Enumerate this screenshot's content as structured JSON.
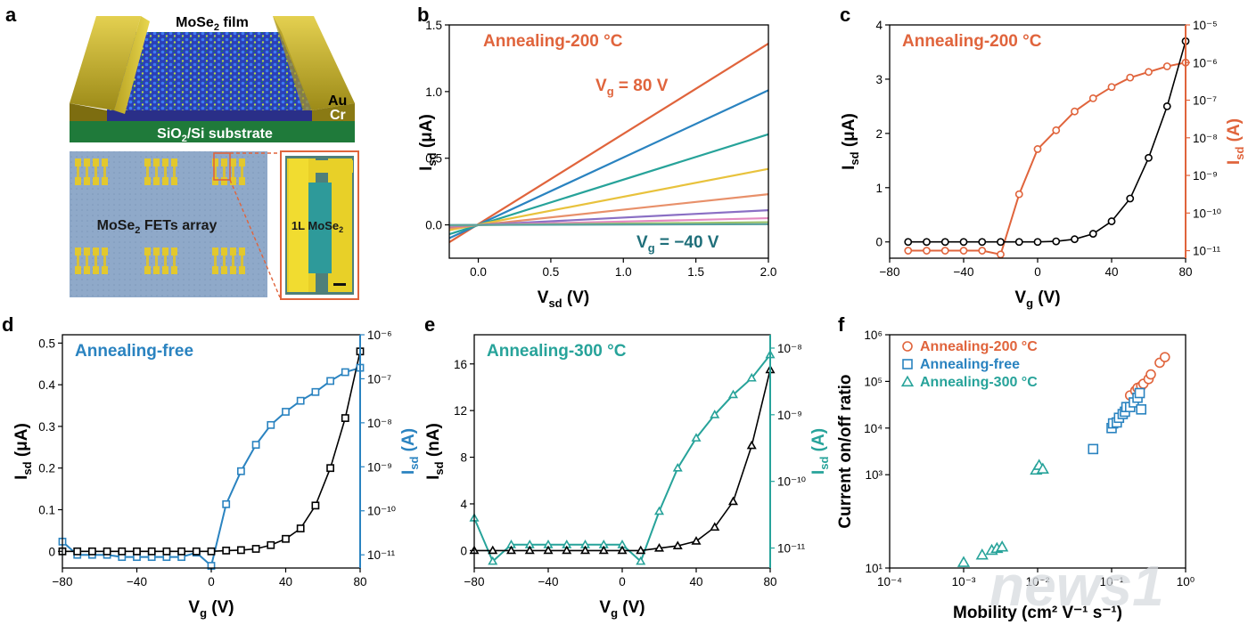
{
  "panel_labels": {
    "a": "a",
    "b": "b",
    "c": "c",
    "d": "d",
    "e": "e",
    "f": "f"
  },
  "illustration": {
    "film_label": "MoSe",
    "film_label_sub": "2",
    "film_label_rest": " film",
    "electrode_top": "Au",
    "electrode_bottom": "Cr",
    "substrate_label": "SiO",
    "substrate_sub": "2",
    "substrate_rest": "/Si substrate",
    "array_label": "MoSe",
    "array_label_sub": "2",
    "array_label_rest": " FETs array",
    "zoom_label": "1L MoSe",
    "zoom_label_sub": "2"
  },
  "colors": {
    "orange": "#e0643c",
    "blue": "#2a83c0",
    "teal": "#27a39a",
    "dark": "#000000",
    "gold": "#c9b52a",
    "green": "#1f7a3a"
  },
  "watermark": {
    "text": "news1"
  },
  "chart_data": [
    {
      "id": "b",
      "type": "line",
      "annotation": "Annealing-200 °C",
      "label_top": {
        "main": "V",
        "sub": "g",
        "rest": " = 80 V"
      },
      "label_bottom": {
        "main": "V",
        "sub": "g",
        "rest": " = −40 V"
      },
      "xlabel": {
        "main": "V",
        "sub": "sd",
        "rest": "  (V)"
      },
      "ylabel": {
        "main": "I",
        "sub": "sd",
        "rest": " (μA)"
      },
      "xlim": [
        -0.2,
        2.0
      ],
      "ylim": [
        -0.25,
        1.5
      ],
      "xticks": [
        "0.0",
        "0.5",
        "1.0",
        "1.5",
        "2.0"
      ],
      "yticks": [
        "0.0",
        "0.5",
        "1.0",
        "1.5"
      ],
      "x": [
        -0.2,
        2.0
      ],
      "series": [
        {
          "color": "#e0643c",
          "values": [
            -0.13,
            1.36
          ]
        },
        {
          "color": "#2a83c0",
          "values": [
            -0.1,
            1.01
          ]
        },
        {
          "color": "#27a39a",
          "values": [
            -0.07,
            0.68
          ]
        },
        {
          "color": "#e8c23c",
          "values": [
            -0.04,
            0.42
          ]
        },
        {
          "color": "#e8906a",
          "values": [
            -0.025,
            0.23
          ]
        },
        {
          "color": "#8a6fc4",
          "values": [
            -0.012,
            0.11
          ]
        },
        {
          "color": "#e48ac0",
          "values": [
            -0.006,
            0.05
          ]
        },
        {
          "color": "#9bc36a",
          "values": [
            -0.003,
            0.02
          ]
        },
        {
          "color": "#5aa0a0",
          "values": [
            -0.001,
            0.005
          ]
        }
      ]
    },
    {
      "id": "c",
      "type": "line",
      "annotation": "Annealing-200 °C",
      "xlabel": {
        "main": "V",
        "sub": "g",
        "rest": " (V)"
      },
      "ylabel": {
        "main": "I",
        "sub": "sd",
        "rest": " (μA)"
      },
      "y2label": {
        "main": "I",
        "sub": "sd",
        "rest": " (A)"
      },
      "xlim": [
        -80,
        80
      ],
      "ylim": [
        -0.3,
        4
      ],
      "y2log": [
        -11.2,
        -5
      ],
      "xticks": [
        "−80",
        "−40",
        "0",
        "40",
        "80"
      ],
      "yticks": [
        "0",
        "1",
        "2",
        "3",
        "4"
      ],
      "y2ticks": [
        "10⁻¹¹",
        "10⁻¹⁰",
        "10⁻⁹",
        "10⁻⁸",
        "10⁻⁷",
        "10⁻⁶",
        "10⁻⁵"
      ],
      "x": [
        -70,
        -60,
        -50,
        -40,
        -30,
        -20,
        -10,
        0,
        10,
        20,
        30,
        40,
        50,
        60,
        70,
        80
      ],
      "linear": [
        0,
        0,
        0,
        0,
        0,
        0,
        0,
        0,
        0.01,
        0.05,
        0.15,
        0.38,
        0.8,
        1.55,
        2.5,
        3.7
      ],
      "log": [
        -11,
        -11,
        -11,
        -11,
        -11,
        -11.1,
        -9.5,
        -8.3,
        -7.8,
        -7.3,
        -6.95,
        -6.65,
        -6.4,
        -6.25,
        -6.1,
        -6.0
      ],
      "linear_color": "#000000",
      "log_color": "#e0643c",
      "marker": "circle"
    },
    {
      "id": "d",
      "type": "line",
      "annotation": "Annealing-free",
      "xlabel": {
        "main": "V",
        "sub": "g",
        "rest": " (V)"
      },
      "ylabel": {
        "main": "I",
        "sub": "sd",
        "rest": " (μA)"
      },
      "y2label": {
        "main": "I",
        "sub": "sd",
        "rest": " (A)"
      },
      "xlim": [
        -80,
        80
      ],
      "ylim": [
        -0.04,
        0.52
      ],
      "y2log": [
        -11.3,
        -6
      ],
      "xticks": [
        "−80",
        "−40",
        "0",
        "40",
        "80"
      ],
      "yticks": [
        "0",
        "0.1",
        "0.2",
        "0.3",
        "0.4",
        "0.5"
      ],
      "y2ticks": [
        "10⁻¹¹",
        "10⁻¹⁰",
        "10⁻⁹",
        "10⁻⁸",
        "10⁻⁷",
        "10⁻⁶"
      ],
      "x": [
        -80,
        -72,
        -64,
        -56,
        -48,
        -40,
        -32,
        -24,
        -16,
        -8,
        0,
        8,
        16,
        24,
        32,
        40,
        48,
        56,
        64,
        72,
        80
      ],
      "linear": [
        0,
        0,
        0,
        0,
        0,
        0,
        0,
        0,
        0,
        0,
        0,
        0.002,
        0.003,
        0.006,
        0.015,
        0.03,
        0.055,
        0.11,
        0.2,
        0.32,
        0.48
      ],
      "log": [
        -10.7,
        -11.0,
        -11.0,
        -11.0,
        -11.05,
        -11.05,
        -11.05,
        -11.05,
        -11.05,
        -10.95,
        -11.25,
        -9.85,
        -9.1,
        -8.5,
        -8.05,
        -7.75,
        -7.5,
        -7.3,
        -7.05,
        -6.85,
        -6.75
      ],
      "linear_color": "#000000",
      "log_color": "#2a83c0",
      "marker": "square"
    },
    {
      "id": "e",
      "type": "line",
      "annotation": "Annealing-300 °C",
      "xlabel": {
        "main": "V",
        "sub": "g",
        "rest": " (V)"
      },
      "ylabel": {
        "main": "I",
        "sub": "sd",
        "rest": " (nA)"
      },
      "y2label": {
        "main": "I",
        "sub": "sd",
        "rest": " (A)"
      },
      "xlim": [
        -80,
        80
      ],
      "ylim": [
        -1.5,
        18.5
      ],
      "y2log": [
        -11.3,
        -7.8
      ],
      "xticks": [
        "−80",
        "−40",
        "0",
        "40",
        "80"
      ],
      "yticks": [
        "0",
        "4",
        "8",
        "12",
        "16"
      ],
      "y2ticks": [
        "10⁻¹¹",
        "10⁻¹⁰",
        "10⁻⁹",
        "10⁻⁸"
      ],
      "x": [
        -80,
        -70,
        -60,
        -50,
        -40,
        -30,
        -20,
        -10,
        0,
        10,
        20,
        30,
        40,
        50,
        60,
        70,
        80
      ],
      "linear": [
        0,
        0,
        0,
        0,
        0,
        0,
        0,
        0,
        0,
        0,
        0.2,
        0.4,
        0.8,
        2.0,
        4.2,
        9.0,
        15.5
      ],
      "log": [
        -10.55,
        -11.2,
        -10.95,
        -10.95,
        -10.95,
        -10.95,
        -10.95,
        -10.95,
        -10.95,
        -11.2,
        -10.45,
        -9.8,
        -9.35,
        -9.0,
        -8.7,
        -8.45,
        -8.1
      ],
      "linear_color": "#000000",
      "log_color": "#27a39a",
      "marker": "triangle"
    },
    {
      "id": "f",
      "type": "scatter",
      "xlabel": "Mobility (cm² V⁻¹ s⁻¹)",
      "ylabel": "Current on/off ratio",
      "xlog": [
        -4,
        0
      ],
      "ylog": [
        1,
        6
      ],
      "xticks": [
        "10⁻⁴",
        "10⁻³",
        "10⁻²",
        "10⁻¹",
        "10⁰"
      ],
      "yticks": [
        "10¹",
        "10³",
        "10⁴",
        "10⁵",
        "10⁶"
      ],
      "yticks_exp": [
        1,
        3,
        4,
        5,
        6
      ],
      "legend_position": "top-left",
      "series": [
        {
          "name": "Annealing-200 °C",
          "marker": "circle",
          "color": "#e0643c",
          "points": [
            [
              -0.75,
              4.7
            ],
            [
              -0.68,
              4.8
            ],
            [
              -0.65,
              4.86
            ],
            [
              -0.6,
              4.9
            ],
            [
              -0.57,
              4.95
            ],
            [
              -0.5,
              5.05
            ],
            [
              -0.47,
              5.15
            ],
            [
              -0.35,
              5.4
            ],
            [
              -0.28,
              5.52
            ]
          ]
        },
        {
          "name": "Annealing-free",
          "marker": "square",
          "color": "#2a83c0",
          "points": [
            [
              -1.25,
              3.55
            ],
            [
              -1.0,
              4.0
            ],
            [
              -0.98,
              4.1
            ],
            [
              -0.93,
              4.12
            ],
            [
              -0.9,
              4.22
            ],
            [
              -0.85,
              4.3
            ],
            [
              -0.82,
              4.35
            ],
            [
              -0.8,
              4.45
            ],
            [
              -0.75,
              4.45
            ],
            [
              -0.7,
              4.55
            ],
            [
              -0.65,
              4.65
            ],
            [
              -0.62,
              4.75
            ],
            [
              -0.6,
              4.4
            ]
          ]
        },
        {
          "name": "Annealing-300 °C",
          "marker": "triangle",
          "color": "#27a39a",
          "points": [
            [
              -3.0,
              1.12
            ],
            [
              -2.75,
              1.28
            ],
            [
              -2.62,
              1.38
            ],
            [
              -2.55,
              1.42
            ],
            [
              -2.48,
              1.45
            ],
            [
              -2.02,
              3.1
            ],
            [
              -1.98,
              3.2
            ],
            [
              -1.93,
              3.12
            ]
          ]
        }
      ]
    }
  ]
}
